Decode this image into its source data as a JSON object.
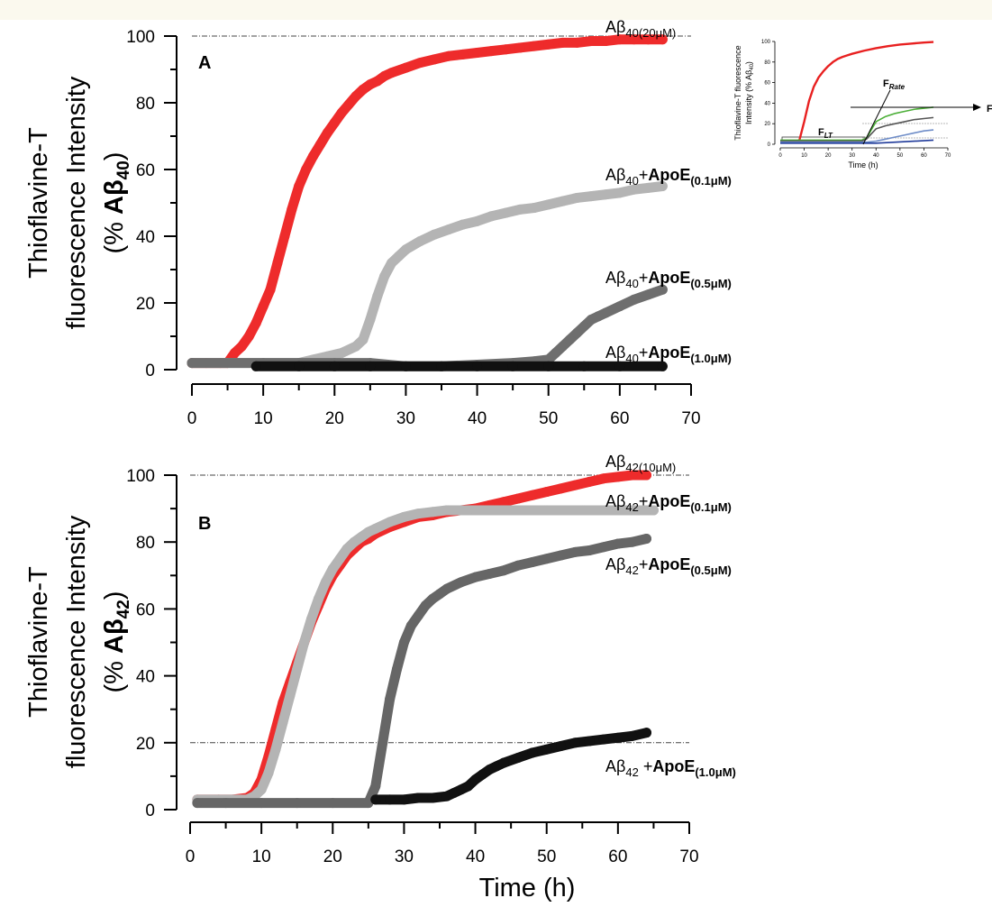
{
  "chart_data": [
    {
      "type": "scatter",
      "panel": "A",
      "ylabel_lines": [
        "Thioflavine-T",
        "fluorescence Intensity"
      ],
      "ylabel_unit": {
        "prefix": "(% ",
        "main": "Aβ",
        "sub": "40",
        "suffix": ")"
      },
      "xlabel": "",
      "xlim": [
        0,
        70
      ],
      "ylim": [
        0,
        100
      ],
      "xticks": [
        "0",
        "10",
        "20",
        "30",
        "40",
        "50",
        "60",
        "70"
      ],
      "yticks": [
        "0",
        "20",
        "40",
        "60",
        "80",
        "100"
      ],
      "reference_lines": [
        100
      ],
      "series": [
        {
          "name": "Aβ40 (20μM)",
          "color": "#ee2b2b",
          "x": [
            0,
            2,
            4,
            5,
            6,
            7,
            8,
            9,
            10,
            11,
            12,
            13,
            14,
            15,
            16,
            17,
            18,
            19,
            20,
            21,
            22,
            23,
            24,
            25,
            26,
            27,
            28,
            30,
            32,
            34,
            36,
            38,
            40,
            42,
            44,
            46,
            48,
            50,
            52,
            54,
            56,
            58,
            60,
            62,
            64,
            66
          ],
          "y": [
            2,
            2,
            2,
            2,
            5,
            7,
            10,
            14,
            19,
            24,
            32,
            40,
            48,
            55,
            60,
            64,
            67.5,
            71,
            74,
            77,
            79.5,
            82,
            84,
            85.5,
            86.5,
            88,
            89,
            90.5,
            92,
            93,
            94,
            94.5,
            95,
            95.5,
            96,
            96.5,
            97,
            97.5,
            98,
            98,
            98.5,
            98.5,
            99,
            99,
            99,
            99
          ]
        },
        {
          "name": "Aβ40+ApoE(0.1μM)",
          "color": "#b4b4b4",
          "x": [
            0,
            5,
            10,
            15,
            17,
            19,
            21,
            23,
            24,
            25,
            26,
            27,
            28,
            29,
            30,
            32,
            34,
            36,
            38,
            40,
            42,
            44,
            46,
            48,
            50,
            52,
            54,
            56,
            58,
            60,
            62,
            64,
            66
          ],
          "y": [
            2,
            2,
            2,
            2,
            3,
            4,
            5,
            7,
            9,
            15,
            22,
            28,
            32,
            34,
            36,
            38.5,
            40.5,
            42,
            43.5,
            44.5,
            46,
            47,
            48,
            48.5,
            49.5,
            50.5,
            51.5,
            52,
            52.5,
            53,
            54,
            54.5,
            55
          ]
        },
        {
          "name": "Aβ40+ApoE(0.5μM)",
          "color": "#6e6e6e",
          "x": [
            0,
            10,
            15,
            20,
            25,
            30,
            35,
            40,
            45,
            48,
            50,
            51,
            52,
            53,
            54,
            55,
            56,
            57,
            58,
            60,
            62,
            64,
            66
          ],
          "y": [
            2,
            2,
            2,
            2,
            2,
            1,
            1,
            1.5,
            2,
            2.5,
            3,
            5,
            7,
            9,
            11,
            13,
            15,
            16,
            17,
            19,
            21,
            22.5,
            24
          ]
        },
        {
          "name": "Aβ40+ApoE(1.0μM)",
          "color": "#111111",
          "x": [
            9,
            15,
            20,
            25,
            30,
            35,
            40,
            45,
            50,
            55,
            60,
            66
          ],
          "y": [
            1,
            1,
            1,
            1,
            1,
            1,
            1,
            1,
            1,
            1,
            1,
            1
          ]
        }
      ],
      "labels": [
        {
          "main": "Aβ",
          "sub": "40",
          "suffix": "",
          "bold": "",
          "cond": "(20μM)"
        },
        {
          "main": "Aβ",
          "sub": "40",
          "suffix": "+",
          "bold": "ApoE",
          "cond": "(0.1μM)"
        },
        {
          "main": "Aβ",
          "sub": "40",
          "suffix": "+",
          "bold": "ApoE",
          "cond": "(0.5μM)"
        },
        {
          "main": "Aβ",
          "sub": "40",
          "suffix": "+",
          "bold": "ApoE",
          "cond": "(1.0μM)"
        }
      ]
    },
    {
      "type": "scatter",
      "panel": "B",
      "ylabel_lines": [
        "Thioflavine-T",
        "fluorescence Intensity"
      ],
      "ylabel_unit": {
        "prefix": "(% ",
        "main": "Aβ",
        "sub": "42",
        "suffix": ")"
      },
      "xlabel": "Time (h)",
      "xlim": [
        0,
        70
      ],
      "ylim": [
        0,
        100
      ],
      "xticks": [
        "0",
        "10",
        "20",
        "30",
        "40",
        "50",
        "60",
        "70"
      ],
      "yticks": [
        "0",
        "20",
        "40",
        "60",
        "80",
        "100"
      ],
      "reference_lines": [
        100,
        20
      ],
      "series": [
        {
          "name": "Aβ42 (10μM)",
          "color": "#ee2b2b",
          "x": [
            1,
            4,
            6,
            8,
            9,
            10,
            11,
            12,
            13,
            14,
            15,
            16,
            17,
            18,
            19,
            20,
            21,
            22,
            23,
            24,
            25,
            26,
            28,
            30,
            32,
            34,
            36,
            38,
            40,
            42,
            44,
            46,
            48,
            50,
            52,
            54,
            56,
            58,
            60,
            62,
            64
          ],
          "y": [
            3,
            3,
            3,
            3.5,
            5,
            9,
            16,
            24,
            32,
            38,
            44,
            50,
            56,
            61,
            66,
            70,
            73,
            76,
            78,
            80,
            81,
            82.5,
            84.5,
            86,
            87.5,
            88,
            89,
            89.5,
            90,
            91,
            92,
            93,
            94,
            95,
            96,
            97,
            98,
            99,
            99.5,
            100,
            100
          ]
        },
        {
          "name": "Aβ42+ApoE(0.1μM)",
          "color": "#b4b4b4",
          "x": [
            1,
            4,
            6,
            8,
            9,
            10,
            11,
            12,
            13,
            14,
            15,
            16,
            17,
            18,
            19,
            20,
            21,
            22,
            23,
            24,
            25,
            26,
            28,
            30,
            32,
            34,
            36,
            38,
            40,
            45,
            50,
            55,
            60,
            65
          ],
          "y": [
            3,
            3,
            3,
            3,
            4,
            6,
            11,
            18,
            26,
            34,
            42,
            50,
            57,
            63,
            68,
            72,
            75,
            78,
            80,
            81.5,
            83,
            84,
            86,
            87.5,
            88.5,
            89,
            89.5,
            89.5,
            89.5,
            89.5,
            89.5,
            89.5,
            89.5,
            89.5
          ]
        },
        {
          "name": "Aβ42+ApoE(0.5μM)",
          "color": "#666666",
          "x": [
            1,
            5,
            10,
            15,
            20,
            25,
            26,
            27,
            28,
            29,
            30,
            31,
            32,
            33,
            34,
            35,
            36,
            38,
            40,
            42,
            44,
            46,
            48,
            50,
            52,
            54,
            56,
            58,
            60,
            62,
            64
          ],
          "y": [
            2,
            2,
            2,
            2,
            2,
            2,
            7,
            20,
            33,
            42,
            50,
            55,
            58,
            61,
            63,
            64.5,
            66,
            68,
            69.5,
            70.5,
            71.5,
            73,
            74,
            75,
            76,
            77,
            77.5,
            78.5,
            79.5,
            80,
            81
          ]
        },
        {
          "name": "Aβ42+ApoE(1.0μM)",
          "color": "#111111",
          "x": [
            26,
            28,
            30,
            32,
            34,
            36,
            37,
            38,
            39,
            40,
            41,
            42,
            43,
            44,
            46,
            48,
            50,
            52,
            54,
            56,
            58,
            60,
            62,
            64
          ],
          "y": [
            3,
            3,
            3,
            3.5,
            3.5,
            4,
            5,
            6,
            7,
            9,
            10.5,
            12,
            13,
            14,
            15.5,
            17,
            18,
            19,
            20,
            20.5,
            21,
            21.5,
            22,
            23
          ]
        }
      ],
      "labels": [
        {
          "main": "Aβ",
          "sub": "42",
          "suffix": "",
          "bold": "",
          "cond": "(10μM)"
        },
        {
          "main": "Aβ",
          "sub": "42",
          "suffix": "+",
          "bold": "ApoE",
          "cond": "(0.1μM)"
        },
        {
          "main": "Aβ",
          "sub": "42",
          "suffix": "+",
          "bold": "ApoE",
          "cond": "(0.5μM)"
        },
        {
          "main": "Aβ",
          "sub": "42",
          "suffix": " +",
          "bold": "ApoE",
          "cond": "(1.0μM)"
        }
      ]
    },
    {
      "type": "line",
      "panel": "inset",
      "ylabel_lines": [
        "Thioflavine-T fluorescence",
        "Intensity (% Aβ"
      ],
      "ylabel_sub": "40",
      "ylabel_end": ")",
      "xlabel": "Time (h)",
      "xlim": [
        0,
        70
      ],
      "ylim": [
        0,
        100
      ],
      "xticks": [
        "0",
        "10",
        "20",
        "30",
        "40",
        "50",
        "60",
        "70"
      ],
      "yticks": [
        "0",
        "20",
        "40",
        "60",
        "80",
        "100"
      ],
      "annotations": [
        {
          "main": "F",
          "sub": "Rate"
        },
        {
          "main": "F",
          "sub": "Max"
        },
        {
          "main": "F",
          "sub": "LT"
        }
      ],
      "series": [
        {
          "color": "#e82020",
          "x": [
            0,
            6,
            8,
            10,
            12,
            14,
            16,
            18,
            20,
            22,
            24,
            26,
            28,
            30,
            35,
            40,
            45,
            50,
            55,
            60,
            64
          ],
          "y": [
            2,
            2,
            4,
            22,
            42,
            56,
            65,
            71,
            76,
            80,
            83,
            85,
            86.5,
            88,
            91,
            93.5,
            95.5,
            97,
            98,
            99,
            99.5
          ]
        },
        {
          "color": "#4caf38",
          "x": [
            0,
            30,
            34,
            36,
            38,
            40,
            44,
            48,
            52,
            56,
            60,
            64
          ],
          "y": [
            4,
            4,
            4,
            6,
            14,
            22,
            27,
            30,
            32,
            34,
            35,
            36
          ]
        },
        {
          "color": "#555555",
          "x": [
            0,
            30,
            34,
            36,
            38,
            40,
            44,
            48,
            52,
            56,
            60,
            64
          ],
          "y": [
            3,
            3,
            3,
            5,
            10,
            15,
            18,
            20,
            22,
            24,
            25,
            26
          ]
        },
        {
          "color": "#6f8dc8",
          "x": [
            0,
            30,
            36,
            40,
            44,
            48,
            52,
            56,
            60,
            64
          ],
          "y": [
            2,
            2,
            2,
            3,
            5,
            7,
            9,
            11,
            13,
            14
          ]
        },
        {
          "color": "#1f3a9a",
          "x": [
            0,
            30,
            40,
            48,
            56,
            64
          ],
          "y": [
            1,
            1,
            1,
            2,
            3,
            4
          ]
        }
      ]
    }
  ]
}
